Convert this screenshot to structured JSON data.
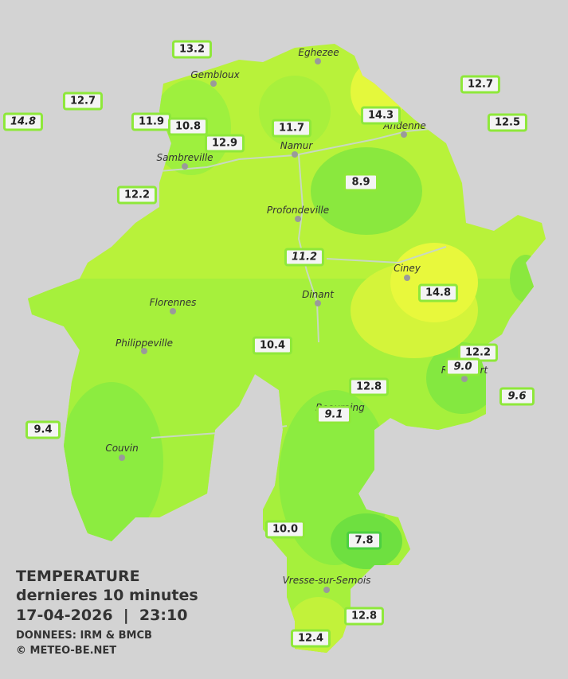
{
  "legend_text": {
    "title": "TEMPERATURE",
    "subtitle": "dernieres 10 minutes",
    "datetime": "17-04-2026  |  23:10",
    "source": "DONNEES: IRM & BMCB",
    "copyright": "© METEO-BE.NET"
  },
  "towns": [
    "Eghezee",
    "Gembloux",
    "Andenne",
    "Namur",
    "Sambreville",
    "Profondeville",
    "Ciney",
    "Dinant",
    "Florennes",
    "Philippeville",
    "Rochefort",
    "Beauraing",
    "Couvin",
    "Vresse-sur-Semois"
  ],
  "stations": [
    {
      "value": "13.2",
      "italic": false
    },
    {
      "value": "12.7",
      "italic": false
    },
    {
      "value": "14.8",
      "italic": true
    },
    {
      "value": "11.9",
      "italic": false
    },
    {
      "value": "10.8",
      "italic": false
    },
    {
      "value": "12.9",
      "italic": false
    },
    {
      "value": "11.7",
      "italic": false
    },
    {
      "value": "14.3",
      "italic": false
    },
    {
      "value": "12.7",
      "italic": false
    },
    {
      "value": "12.5",
      "italic": false
    },
    {
      "value": "12.2",
      "italic": false
    },
    {
      "value": "8.9",
      "italic": false
    },
    {
      "value": "11.2",
      "italic": true
    },
    {
      "value": "14.8",
      "italic": false
    },
    {
      "value": "10.4",
      "italic": false
    },
    {
      "value": "12.2",
      "italic": false
    },
    {
      "value": "9.0",
      "italic": true
    },
    {
      "value": "12.8",
      "italic": false
    },
    {
      "value": "9.6",
      "italic": true
    },
    {
      "value": "9.1",
      "italic": true
    },
    {
      "value": "9.4",
      "italic": false
    },
    {
      "value": "10.0",
      "italic": false
    },
    {
      "value": "7.8",
      "italic": false
    },
    {
      "value": "12.8",
      "italic": false
    },
    {
      "value": "12.4",
      "italic": false
    }
  ]
}
